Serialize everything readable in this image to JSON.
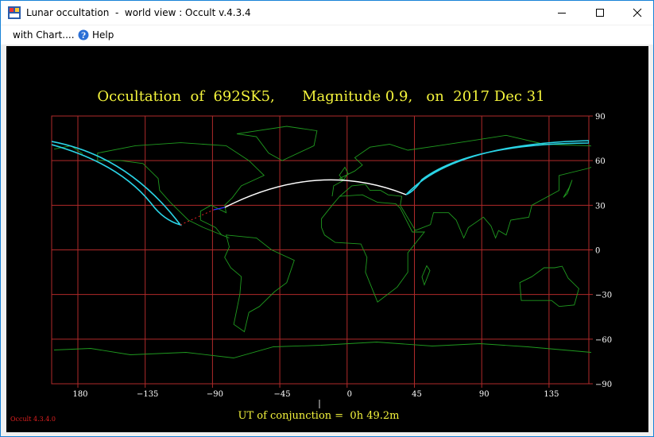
{
  "window": {
    "title": "Lunar occultation  -  world view : Occult v.4.3.4"
  },
  "menu": [
    "with Chart....",
    "Help"
  ],
  "map": {
    "title": "Occultation  of  692SK5,      Magnitude 0.9,   on  2017 Dec 31",
    "x_ticks": [
      "180",
      "−135",
      "−90",
      "−45",
      "0",
      "45",
      "90",
      "135"
    ],
    "y_ticks": [
      "90",
      "60",
      "30",
      "0",
      "−30",
      "−60",
      "−90"
    ],
    "footer": "UT of conjunction =  0h 49.2m",
    "version": "Occult 4.3.4.0"
  }
}
